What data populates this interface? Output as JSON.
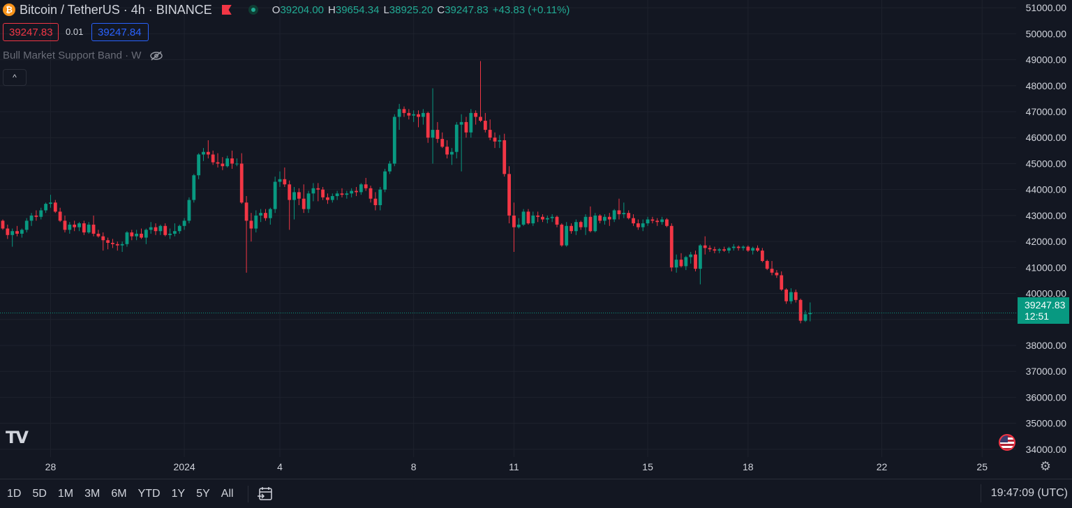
{
  "header": {
    "symbol": "Bitcoin / TetherUS · 4h · BINANCE",
    "logo_letter": "₿",
    "ohlc": [
      {
        "key": "O",
        "value": "39204.00"
      },
      {
        "key": "H",
        "value": "39654.34"
      },
      {
        "key": "L",
        "value": "38925.20"
      },
      {
        "key": "C",
        "value": "39247.83"
      },
      {
        "key": "",
        "value": "+43.83 (+0.11%)"
      }
    ],
    "sell_price": "39247.83",
    "spread": "0.01",
    "buy_price": "39247.84"
  },
  "indicator": {
    "label": "Bull Market Support Band · W"
  },
  "collapse_icon": "^",
  "logo_text": "TV",
  "price_tag": {
    "price": "39247.83",
    "countdown": "12:51"
  },
  "bottom": {
    "timeframes": [
      "1D",
      "5D",
      "1M",
      "3M",
      "6M",
      "YTD",
      "1Y",
      "5Y",
      "All"
    ],
    "clock": "19:47:09 (UTC)"
  },
  "colors": {
    "up": "#089981",
    "down": "#f23645",
    "background": "#131722",
    "grid": "#1e222d"
  },
  "chart_data": {
    "type": "candlestick",
    "timeframe": "4h",
    "ylim": [
      33700,
      51300
    ],
    "y_ticks": [
      51000,
      50000,
      49000,
      48000,
      47000,
      46000,
      45000,
      44000,
      43000,
      42000,
      41000,
      40000,
      38000,
      37000,
      36000,
      35000,
      34000
    ],
    "y_tick_labels": [
      "51000.00",
      "50000.00",
      "49000.00",
      "48000.00",
      "47000.00",
      "46000.00",
      "45000.00",
      "44000.00",
      "43000.00",
      "42000.00",
      "41000.00",
      "40000.00",
      "38000.00",
      "37000.00",
      "36000.00",
      "35000.00",
      "34000.00"
    ],
    "x_labels": [
      {
        "label": "28",
        "index": 10
      },
      {
        "label": "2024",
        "index": 38
      },
      {
        "label": "4",
        "index": 58
      },
      {
        "label": "8",
        "index": 86
      },
      {
        "label": "11",
        "index": 107
      },
      {
        "label": "15",
        "index": 135
      },
      {
        "label": "18",
        "index": 156
      },
      {
        "label": "22",
        "index": 184
      },
      {
        "label": "25",
        "index": 205
      }
    ],
    "last_price": 39247.83,
    "candles": [
      [
        42800,
        42850,
        42450,
        42500
      ],
      [
        42500,
        42650,
        42100,
        42250
      ],
      [
        42250,
        42500,
        41800,
        42400
      ],
      [
        42400,
        42600,
        42200,
        42300
      ],
      [
        42300,
        42500,
        42150,
        42450
      ],
      [
        42450,
        42900,
        42350,
        42800
      ],
      [
        42800,
        43100,
        42600,
        43000
      ],
      [
        43000,
        43200,
        42800,
        42950
      ],
      [
        42950,
        43300,
        42850,
        43200
      ],
      [
        43200,
        43500,
        43100,
        43450
      ],
      [
        43450,
        43800,
        43300,
        43500
      ],
      [
        43500,
        43600,
        43100,
        43150
      ],
      [
        43150,
        43300,
        42750,
        42800
      ],
      [
        42800,
        43000,
        42350,
        42450
      ],
      [
        42450,
        42750,
        42300,
        42650
      ],
      [
        42650,
        42800,
        42400,
        42550
      ],
      [
        42550,
        42750,
        42400,
        42700
      ],
      [
        42700,
        42800,
        42250,
        42350
      ],
      [
        42350,
        42750,
        42300,
        42650
      ],
      [
        42650,
        43000,
        42200,
        42300
      ],
      [
        42300,
        42450,
        42150,
        42200
      ],
      [
        42200,
        42350,
        41650,
        42050
      ],
      [
        42050,
        42150,
        41700,
        41950
      ],
      [
        41950,
        42100,
        41750,
        41900
      ],
      [
        41900,
        42000,
        41650,
        41850
      ],
      [
        41850,
        42000,
        41600,
        41900
      ],
      [
        41900,
        42400,
        41800,
        42350
      ],
      [
        42350,
        42450,
        42050,
        42200
      ],
      [
        42200,
        42450,
        42050,
        42300
      ],
      [
        42300,
        42500,
        42100,
        42150
      ],
      [
        42150,
        42500,
        41900,
        42450
      ],
      [
        42450,
        42750,
        42300,
        42550
      ],
      [
        42550,
        42700,
        42250,
        42400
      ],
      [
        42400,
        42650,
        42250,
        42600
      ],
      [
        42600,
        42700,
        42200,
        42250
      ],
      [
        42250,
        42500,
        42100,
        42300
      ],
      [
        42300,
        42700,
        42200,
        42400
      ],
      [
        42400,
        42650,
        42300,
        42600
      ],
      [
        42600,
        42900,
        42450,
        42800
      ],
      [
        42800,
        43700,
        42700,
        43600
      ],
      [
        43600,
        44600,
        43500,
        44550
      ],
      [
        44550,
        45400,
        44400,
        45350
      ],
      [
        45350,
        45600,
        45100,
        45450
      ],
      [
        45450,
        45900,
        45200,
        45350
      ],
      [
        45350,
        45500,
        44950,
        45050
      ],
      [
        45050,
        45400,
        44850,
        45000
      ],
      [
        45000,
        45250,
        44750,
        44900
      ],
      [
        44900,
        45300,
        44850,
        45200
      ],
      [
        45200,
        45500,
        44800,
        45000
      ],
      [
        45000,
        45200,
        44900,
        45000
      ],
      [
        45000,
        45400,
        43450,
        43500
      ],
      [
        43500,
        43750,
        40800,
        42800
      ],
      [
        42800,
        43100,
        42000,
        42500
      ],
      [
        42500,
        43200,
        42350,
        43000
      ],
      [
        43000,
        43250,
        42750,
        43100
      ],
      [
        43100,
        43250,
        42800,
        42900
      ],
      [
        42900,
        43300,
        42650,
        43250
      ],
      [
        43250,
        44500,
        43100,
        44300
      ],
      [
        44300,
        44700,
        44100,
        44400
      ],
      [
        44400,
        44850,
        44100,
        44200
      ],
      [
        44200,
        44350,
        42450,
        43600
      ],
      [
        43600,
        44100,
        42850,
        43900
      ],
      [
        43900,
        44050,
        43400,
        43650
      ],
      [
        43650,
        44200,
        43100,
        43250
      ],
      [
        43250,
        43950,
        43100,
        43850
      ],
      [
        43850,
        44250,
        43550,
        44050
      ],
      [
        44050,
        44250,
        43550,
        44000
      ],
      [
        44000,
        44100,
        43600,
        43700
      ],
      [
        43700,
        43850,
        43450,
        43600
      ],
      [
        43600,
        43850,
        43500,
        43750
      ],
      [
        43750,
        43950,
        43600,
        43850
      ],
      [
        43850,
        44050,
        43700,
        43800
      ],
      [
        43800,
        43950,
        43650,
        43850
      ],
      [
        43850,
        44050,
        43700,
        43950
      ],
      [
        43950,
        44100,
        43750,
        43900
      ],
      [
        43900,
        44250,
        43800,
        44200
      ],
      [
        44200,
        44450,
        43950,
        44050
      ],
      [
        44050,
        44150,
        43500,
        43650
      ],
      [
        43650,
        43900,
        43200,
        43400
      ],
      [
        43400,
        44100,
        43200,
        44000
      ],
      [
        44000,
        44800,
        43900,
        44700
      ],
      [
        44700,
        45100,
        44600,
        45000
      ],
      [
        45000,
        46900,
        44900,
        46800
      ],
      [
        46800,
        47300,
        46300,
        47100
      ],
      [
        47100,
        47200,
        46800,
        46950
      ],
      [
        46950,
        47100,
        46700,
        46850
      ],
      [
        46850,
        47050,
        46600,
        46900
      ],
      [
        46900,
        47050,
        46400,
        46800
      ],
      [
        46800,
        47100,
        46500,
        46950
      ],
      [
        46950,
        47000,
        45800,
        46000
      ],
      [
        46000,
        47900,
        45000,
        46300
      ],
      [
        46300,
        46600,
        45800,
        45950
      ],
      [
        45950,
        46200,
        45600,
        45650
      ],
      [
        45650,
        45900,
        45200,
        45350
      ],
      [
        45350,
        45600,
        44950,
        45450
      ],
      [
        45450,
        46600,
        45200,
        46500
      ],
      [
        46500,
        46900,
        44700,
        46600
      ],
      [
        46600,
        46800,
        46000,
        46200
      ],
      [
        46200,
        47100,
        46000,
        46950
      ],
      [
        46950,
        47050,
        46500,
        46800
      ],
      [
        46800,
        48950,
        46600,
        46650
      ],
      [
        46650,
        46950,
        46200,
        46300
      ],
      [
        46300,
        46700,
        45900,
        46000
      ],
      [
        46000,
        46200,
        45600,
        45850
      ],
      [
        45850,
        46100,
        45600,
        45900
      ],
      [
        45900,
        46150,
        44500,
        44600
      ],
      [
        44600,
        44900,
        42700,
        43000
      ],
      [
        43000,
        43500,
        41600,
        42550
      ],
      [
        42550,
        42900,
        42500,
        42650
      ],
      [
        42650,
        43250,
        42600,
        43150
      ],
      [
        43150,
        43250,
        42650,
        42700
      ],
      [
        42700,
        43150,
        42600,
        43000
      ],
      [
        43000,
        43150,
        42750,
        42950
      ],
      [
        42950,
        43050,
        42750,
        42850
      ],
      [
        42850,
        43000,
        42700,
        42900
      ],
      [
        42900,
        43050,
        42750,
        42950
      ],
      [
        42950,
        43000,
        42550,
        42650
      ],
      [
        42650,
        42700,
        41800,
        41850
      ],
      [
        41850,
        42750,
        41800,
        42600
      ],
      [
        42600,
        42700,
        42300,
        42400
      ],
      [
        42400,
        42850,
        42250,
        42750
      ],
      [
        42750,
        42800,
        42450,
        42550
      ],
      [
        42550,
        43050,
        42250,
        42950
      ],
      [
        42950,
        43350,
        42350,
        42400
      ],
      [
        42400,
        43100,
        42350,
        43000
      ],
      [
        43000,
        43050,
        42700,
        42800
      ],
      [
        42800,
        43050,
        42650,
        42950
      ],
      [
        42950,
        43100,
        42600,
        42850
      ],
      [
        42850,
        43250,
        42750,
        43200
      ],
      [
        43200,
        43650,
        42850,
        43050
      ],
      [
        43050,
        43500,
        42900,
        43100
      ],
      [
        43100,
        43200,
        42850,
        42900
      ],
      [
        42900,
        43050,
        42600,
        42700
      ],
      [
        42700,
        42850,
        42450,
        42550
      ],
      [
        42550,
        42850,
        42400,
        42700
      ],
      [
        42700,
        42950,
        42600,
        42850
      ],
      [
        42850,
        42950,
        42700,
        42800
      ],
      [
        42800,
        42900,
        42600,
        42750
      ],
      [
        42750,
        42950,
        42650,
        42850
      ],
      [
        42850,
        42900,
        42550,
        42600
      ],
      [
        42600,
        42700,
        40850,
        41000
      ],
      [
        41000,
        41500,
        40800,
        41300
      ],
      [
        41300,
        41550,
        41000,
        41050
      ],
      [
        41050,
        41450,
        40900,
        41400
      ],
      [
        41400,
        41600,
        41150,
        41500
      ],
      [
        41500,
        41650,
        40850,
        40950
      ],
      [
        40950,
        41900,
        40350,
        41850
      ],
      [
        41850,
        42200,
        41500,
        41750
      ],
      [
        41750,
        41850,
        41600,
        41700
      ],
      [
        41700,
        41800,
        41550,
        41650
      ],
      [
        41650,
        41750,
        41550,
        41700
      ],
      [
        41700,
        41800,
        41600,
        41650
      ],
      [
        41650,
        41800,
        41550,
        41750
      ],
      [
        41750,
        41900,
        41650,
        41800
      ],
      [
        41800,
        41850,
        41650,
        41750
      ],
      [
        41750,
        41850,
        41650,
        41800
      ],
      [
        41800,
        41850,
        41600,
        41650
      ],
      [
        41650,
        41800,
        41500,
        41750
      ],
      [
        41750,
        41850,
        41600,
        41650
      ],
      [
        41650,
        41750,
        41200,
        41250
      ],
      [
        41250,
        41300,
        40900,
        40950
      ],
      [
        40950,
        41250,
        40700,
        40800
      ],
      [
        40800,
        40900,
        40600,
        40700
      ],
      [
        40700,
        40850,
        40100,
        40150
      ],
      [
        40150,
        40200,
        39600,
        39700
      ],
      [
        39700,
        40200,
        39600,
        40050
      ],
      [
        40050,
        40150,
        39650,
        39750
      ],
      [
        39750,
        39800,
        38850,
        38950
      ],
      [
        38950,
        39350,
        38900,
        39200
      ],
      [
        39204,
        39654.34,
        38925.2,
        39247.83
      ]
    ]
  }
}
